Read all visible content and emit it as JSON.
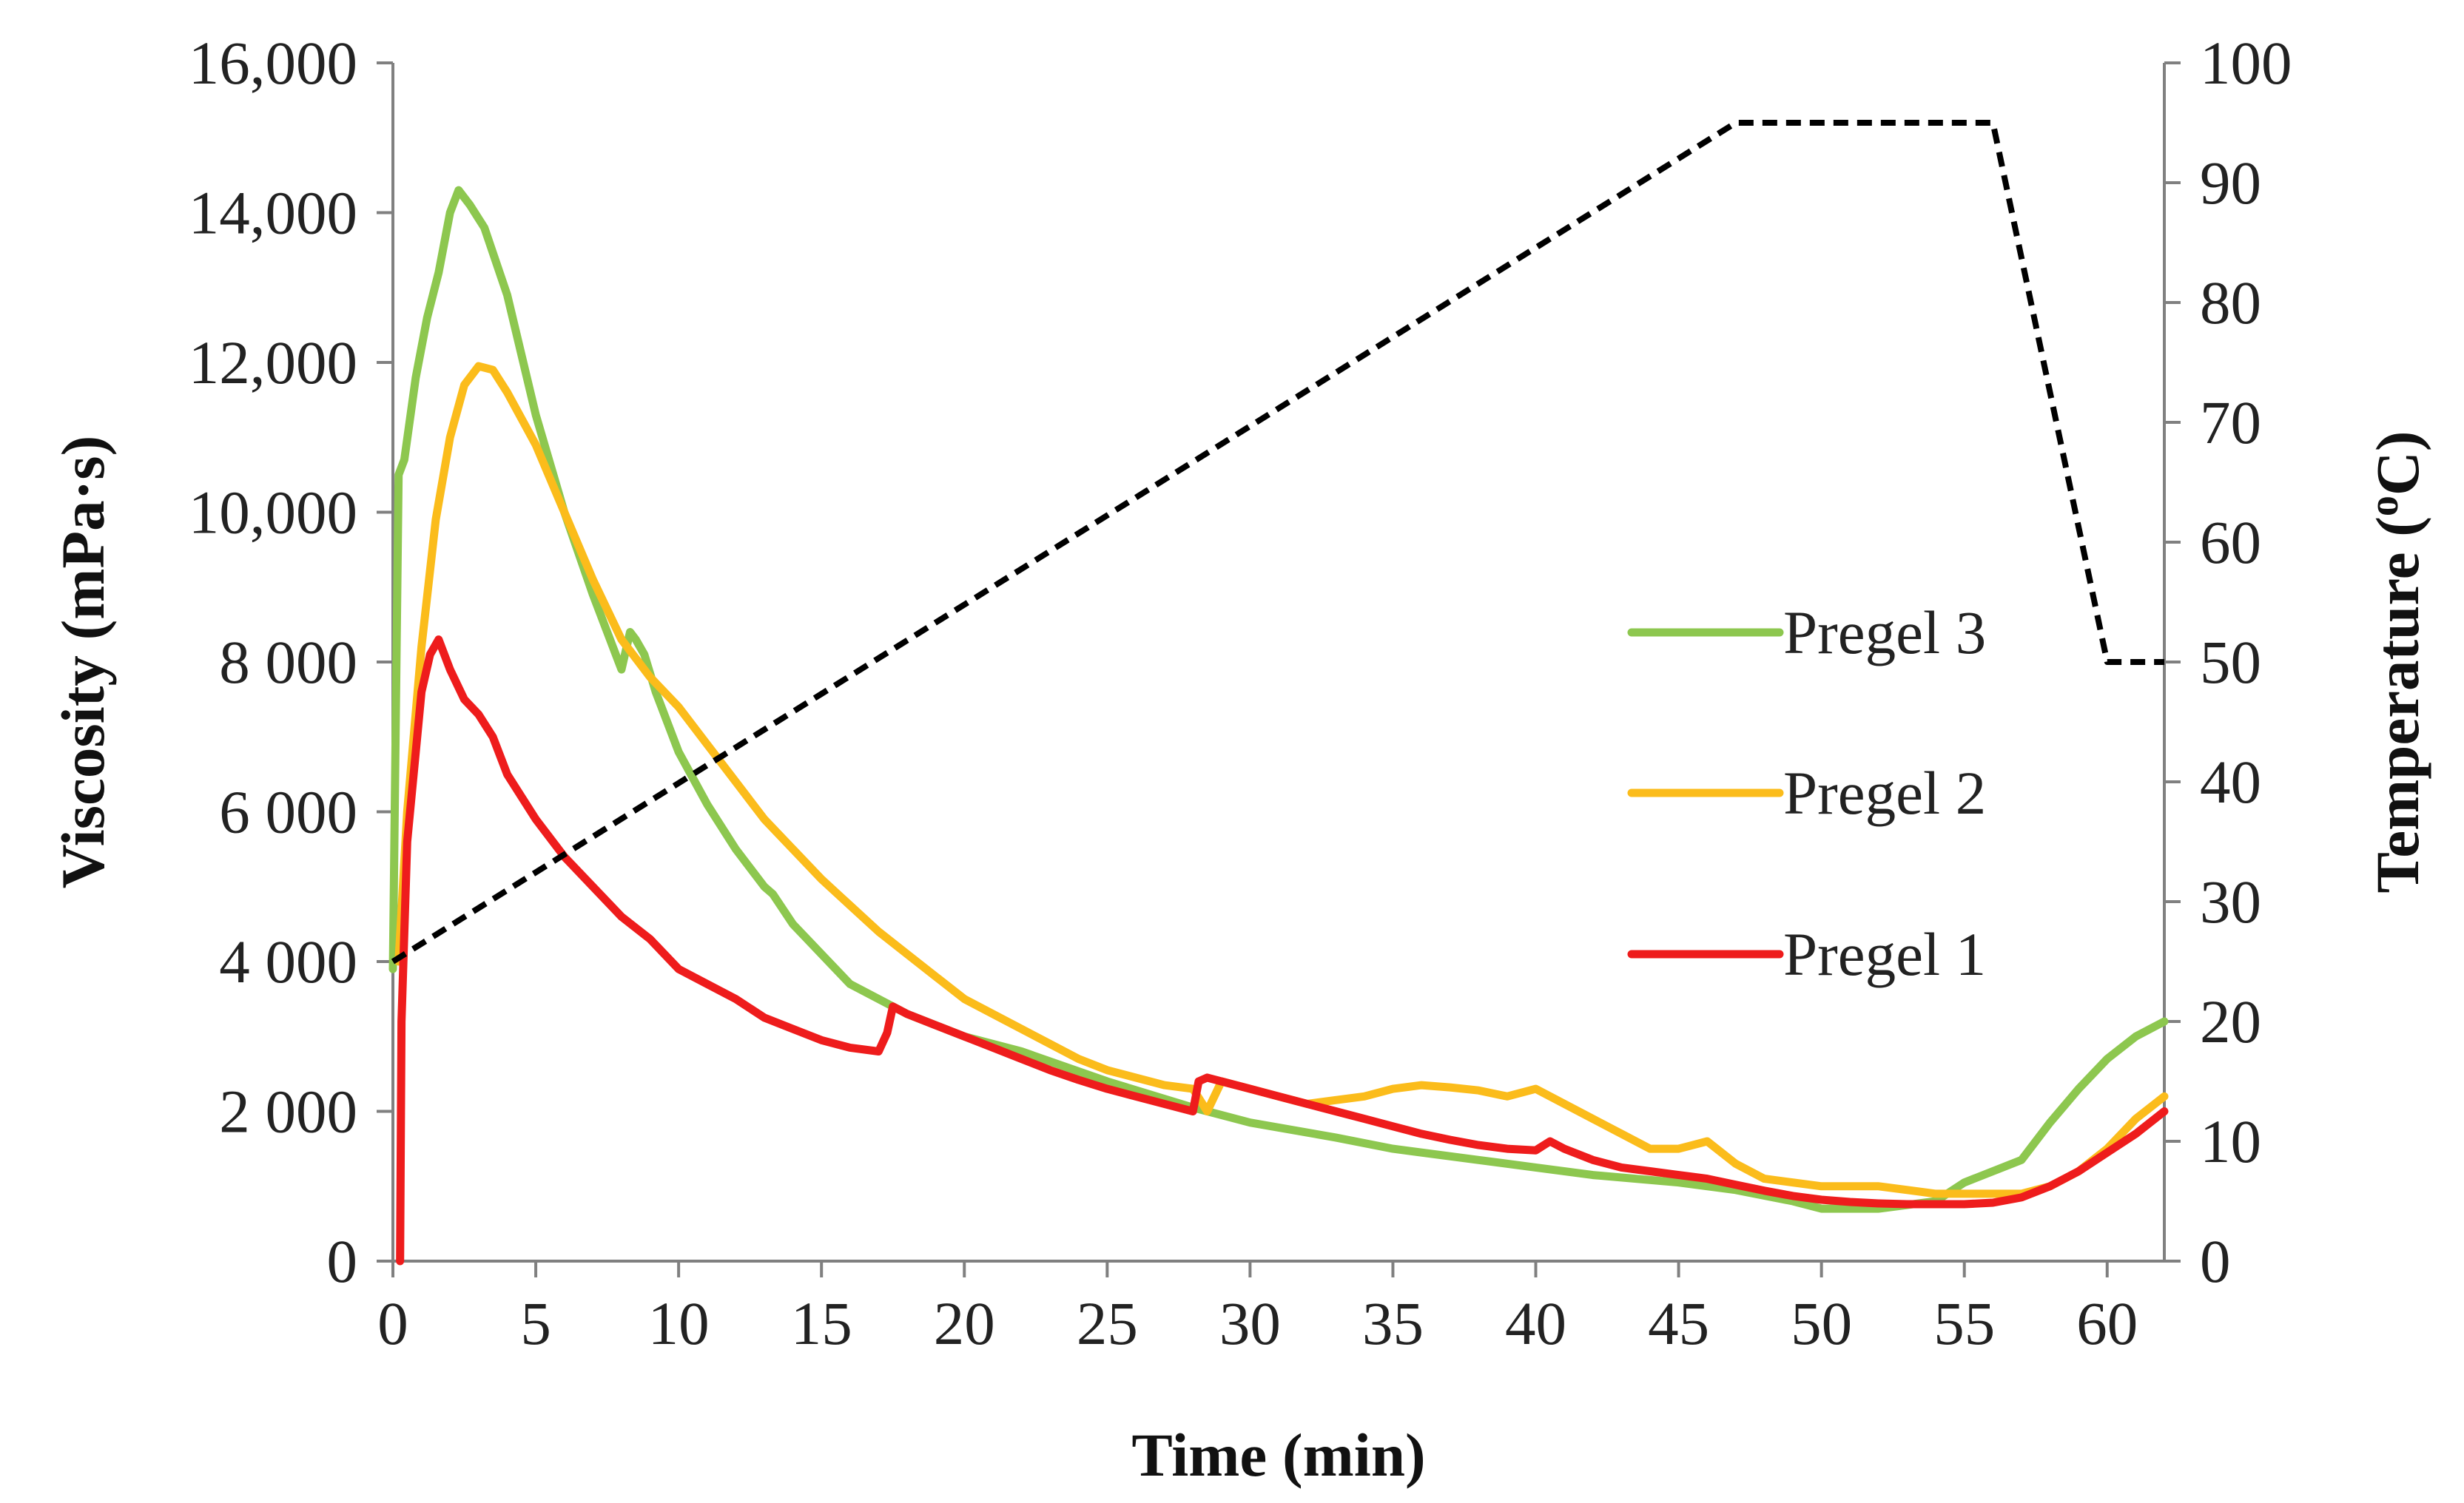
{
  "chart_data": {
    "type": "line",
    "title": "",
    "xlabel": "Time (min)",
    "ylabel": "Viscosity (mPa·s)",
    "y2label_prefix": "Temperature (",
    "y2label_sup": "o",
    "y2label_suffix": "C)",
    "xlim": [
      0,
      62
    ],
    "ylim": [
      0,
      16000
    ],
    "y2lim": [
      0,
      100
    ],
    "x_ticks": [
      0,
      5,
      10,
      15,
      20,
      25,
      30,
      35,
      40,
      45,
      50,
      55,
      60
    ],
    "x_tick_labels": [
      "0",
      "5",
      "10",
      "15",
      "20",
      "25",
      "30",
      "35",
      "40",
      "45",
      "50",
      "55",
      "60"
    ],
    "y_ticks": [
      0,
      2000,
      4000,
      6000,
      8000,
      10000,
      12000,
      14000,
      16000
    ],
    "y_tick_labels": [
      "0",
      "2 000",
      "4 000",
      "6 000",
      "8 000",
      "10,000",
      "12,000",
      "14,000",
      "16,000"
    ],
    "y2_ticks": [
      0,
      10,
      20,
      30,
      40,
      50,
      60,
      70,
      80,
      90,
      100
    ],
    "y2_tick_labels": [
      "0",
      "10",
      "20",
      "30",
      "40",
      "50",
      "60",
      "70",
      "80",
      "90",
      "100"
    ],
    "grid": false,
    "legend_position": "right-middle",
    "series": [
      {
        "name": "Pregel 3",
        "color": "#8dc74f",
        "axis": "left",
        "x": [
          0,
          0.2,
          0.4,
          0.8,
          1.2,
          1.6,
          2.0,
          2.3,
          2.7,
          3.2,
          4.0,
          5.0,
          6.0,
          7.0,
          8.0,
          8.3,
          8.5,
          8.8,
          9.2,
          10.0,
          11.0,
          12.0,
          13.0,
          13.3,
          14.0,
          15.0,
          16.0,
          18.0,
          20.0,
          22.0,
          25.0,
          28.0,
          30.0,
          33.0,
          35.0,
          38.0,
          40.0,
          42.0,
          45.0,
          47.0,
          49.0,
          50.0,
          52.0,
          54.0,
          55.0,
          57.0,
          58.0,
          59.0,
          60.0,
          61.0,
          62.0
        ],
        "values": [
          3900,
          10500,
          10700,
          11800,
          12600,
          13200,
          14000,
          14300,
          14100,
          13800,
          12900,
          11300,
          10000,
          8900,
          7900,
          8400,
          8300,
          8100,
          7600,
          6800,
          6100,
          5500,
          5000,
          4900,
          4500,
          4100,
          3700,
          3300,
          3000,
          2800,
          2400,
          2050,
          1850,
          1650,
          1500,
          1350,
          1250,
          1150,
          1050,
          950,
          800,
          700,
          700,
          800,
          1050,
          1350,
          1850,
          2300,
          2700,
          3000,
          3200
        ]
      },
      {
        "name": "Pregel 2",
        "color": "#fbbc1b",
        "axis": "left",
        "x": [
          0.2,
          0.5,
          1.0,
          1.5,
          2.0,
          2.5,
          3.0,
          3.5,
          4.0,
          5.0,
          6.0,
          7.0,
          8.0,
          9.0,
          10.0,
          11.0,
          12.0,
          13.0,
          14.0,
          15.0,
          16.0,
          17.0,
          18.0,
          19.0,
          20.0,
          21.0,
          22.0,
          23.0,
          24.0,
          25.0,
          26.0,
          27.0,
          28.0,
          28.5,
          29.0,
          30.0,
          31.0,
          32.0,
          33.0,
          34.0,
          35.0,
          36.0,
          37.0,
          38.0,
          39.0,
          40.0,
          41.0,
          42.0,
          43.0,
          44.0,
          45.0,
          46.0,
          47.0,
          48.0,
          49.0,
          50.0,
          51.0,
          52.0,
          53.0,
          54.0,
          55.0,
          56.0,
          57.0,
          58.0,
          59.0,
          60.0,
          61.0,
          62.0
        ],
        "values": [
          4000,
          6000,
          8200,
          9900,
          11000,
          11700,
          11950,
          11900,
          11600,
          10900,
          10000,
          9100,
          8300,
          7800,
          7400,
          6900,
          6400,
          5900,
          5500,
          5100,
          4750,
          4400,
          4100,
          3800,
          3500,
          3300,
          3100,
          2900,
          2700,
          2550,
          2450,
          2350,
          2300,
          2000,
          2400,
          2300,
          2200,
          2100,
          2150,
          2200,
          2300,
          2350,
          2320,
          2280,
          2200,
          2300,
          2100,
          1900,
          1700,
          1500,
          1500,
          1600,
          1300,
          1100,
          1050,
          1000,
          1000,
          1000,
          950,
          900,
          900,
          900,
          900,
          1000,
          1200,
          1500,
          1900,
          2200
        ]
      },
      {
        "name": "Pregel 1",
        "color": "#ee1c1c",
        "axis": "left",
        "x": [
          0.25,
          0.3,
          0.5,
          0.8,
          1.0,
          1.3,
          1.6,
          2.0,
          2.5,
          3.0,
          3.5,
          4.0,
          5.0,
          6.0,
          7.0,
          8.0,
          9.0,
          10.0,
          11.0,
          12.0,
          13.0,
          14.0,
          15.0,
          16.0,
          17.0,
          17.3,
          17.5,
          18.0,
          19.0,
          20.0,
          21.0,
          22.0,
          23.0,
          24.0,
          25.0,
          26.0,
          27.0,
          28.0,
          28.2,
          28.5,
          29.0,
          30.0,
          31.0,
          32.0,
          33.0,
          34.0,
          35.0,
          36.0,
          37.0,
          38.0,
          39.0,
          40.0,
          40.5,
          41.0,
          42.0,
          43.0,
          44.0,
          45.0,
          46.0,
          47.0,
          48.0,
          49.0,
          50.0,
          51.0,
          52.0,
          53.0,
          54.0,
          55.0,
          56.0,
          57.0,
          58.0,
          59.0,
          60.0,
          61.0,
          62.0
        ],
        "values": [
          0,
          3200,
          5600,
          6800,
          7600,
          8100,
          8300,
          7900,
          7500,
          7300,
          7000,
          6500,
          5900,
          5400,
          5000,
          4600,
          4300,
          3900,
          3700,
          3500,
          3250,
          3100,
          2950,
          2850,
          2800,
          3050,
          3400,
          3300,
          3150,
          3000,
          2850,
          2700,
          2550,
          2420,
          2300,
          2200,
          2100,
          2000,
          2400,
          2450,
          2400,
          2300,
          2200,
          2100,
          2000,
          1900,
          1800,
          1700,
          1620,
          1550,
          1500,
          1480,
          1600,
          1500,
          1350,
          1250,
          1200,
          1150,
          1100,
          1020,
          940,
          870,
          820,
          790,
          770,
          760,
          760,
          760,
          780,
          850,
          1000,
          1200,
          1450,
          1700,
          2000
        ]
      },
      {
        "name": "Temperature",
        "color": "#000000",
        "axis": "right",
        "dashed": true,
        "x": [
          0,
          47,
          56,
          60,
          62
        ],
        "values": [
          25,
          95,
          95,
          50,
          50
        ]
      }
    ]
  }
}
